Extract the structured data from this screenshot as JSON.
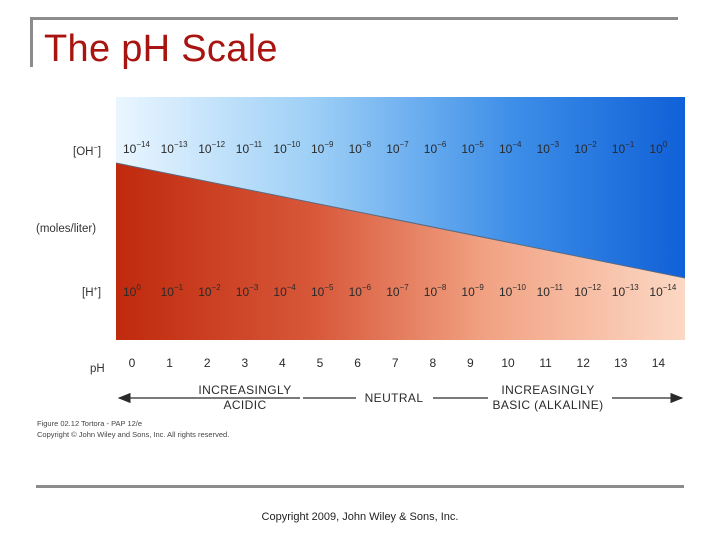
{
  "title": "The pH Scale",
  "footer": "Copyright 2009, John Wiley & Sons, Inc.",
  "diagram": {
    "row_labels": {
      "oh_base": "[OH",
      "oh_sup": "−",
      "moles": "(moles/liter)",
      "h_base": "[H",
      "h_sup": "+",
      "ph": "pH"
    },
    "oh_exponents": [
      "−14",
      "−13",
      "−12",
      "−11",
      "−10",
      "−9",
      "−8",
      "−7",
      "−6",
      "−5",
      "−4",
      "−3",
      "−2",
      "−1",
      "0"
    ],
    "h_exponents": [
      "0",
      "−1",
      "−2",
      "−3",
      "−4",
      "−5",
      "−6",
      "−7",
      "−8",
      "−9",
      "−10",
      "−11",
      "−12",
      "−13",
      "−14"
    ],
    "ph_values": [
      "0",
      "1",
      "2",
      "3",
      "4",
      "5",
      "6",
      "7",
      "8",
      "9",
      "10",
      "11",
      "12",
      "13",
      "14"
    ],
    "base_number": "10",
    "acidic_label_1": "INCREASINGLY",
    "acidic_label_2": "ACIDIC",
    "neutral_label": "NEUTRAL",
    "basic_label_1": "INCREASINGLY",
    "basic_label_2": "BASIC (ALKALINE)",
    "caption_1": "Figure 02.12  Tortora - PAP 12/e",
    "caption_2": "Copyright © John Wiley and Sons, Inc. All rights reserved.",
    "colors": {
      "acid": "#c0290d",
      "base_light": "#fcd8c4",
      "oh_light": "#eaf6ff",
      "oh_dark": "#1060d8",
      "title": "#a8140f"
    }
  }
}
